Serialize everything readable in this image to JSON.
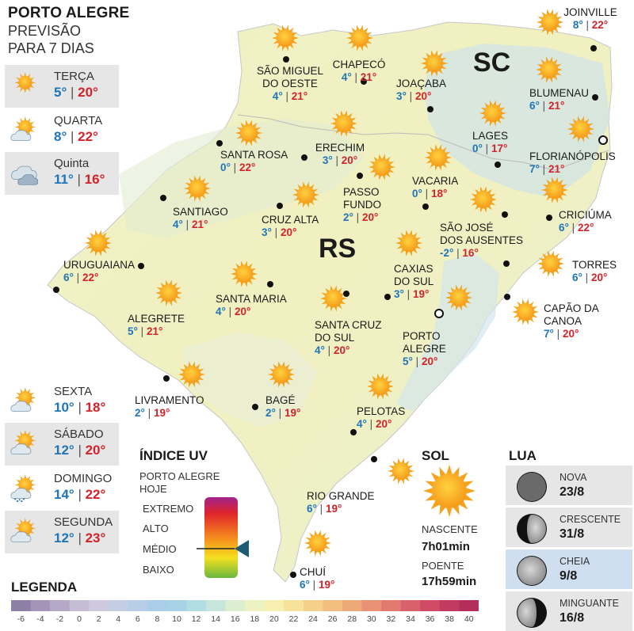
{
  "header": {
    "line1": "PORTO ALEGRE",
    "line2": "PREVISÃO",
    "line3": "PARA 7 DIAS"
  },
  "forecast": [
    {
      "day": "TERÇA",
      "min": "5°",
      "max": "20°",
      "icon": "sun-icon"
    },
    {
      "day": "QUARTA",
      "min": "8°",
      "max": "22°",
      "icon": "sun-cloud-icon"
    },
    {
      "day": "Quinta",
      "min": "11°",
      "max": "16°",
      "icon": "cloud-icon"
    },
    {
      "day": "SEXTA",
      "min": "10°",
      "max": "18°",
      "icon": "sun-cloud-icon"
    },
    {
      "day": "SÁBADO",
      "min": "12°",
      "max": "20°",
      "icon": "sun-cloud-icon"
    },
    {
      "day": "DOMINGO",
      "min": "14°",
      "max": "22°",
      "icon": "sun-cloud-rain-icon"
    },
    {
      "day": "SEGUNDA",
      "min": "12°",
      "max": "23°",
      "icon": "sun-cloud-icon"
    }
  ],
  "states": {
    "sc": "SC",
    "rs": "RS"
  },
  "cities": [
    {
      "name": "SÃO MIGUEL\nDO OESTE",
      "min": "4°",
      "max": "21°"
    },
    {
      "name": "CHAPECÓ",
      "min": "4°",
      "max": "21°"
    },
    {
      "name": "JOAÇABA",
      "min": "3°",
      "max": "20°"
    },
    {
      "name": "JOINVILLE",
      "min": "8°",
      "max": "22°"
    },
    {
      "name": "BLUMENAU",
      "min": "6°",
      "max": "21°"
    },
    {
      "name": "LAGES",
      "min": "0°",
      "max": "17°"
    },
    {
      "name": "FLORIANÓPOLIS",
      "min": "7°",
      "max": "21°"
    },
    {
      "name": "SANTA ROSA",
      "min": "0°",
      "max": "22°"
    },
    {
      "name": "ERECHIM",
      "min": "3°",
      "max": "20°"
    },
    {
      "name": "VACARIA",
      "min": "0°",
      "max": "18°"
    },
    {
      "name": "PASSO\nFUNDO",
      "min": "2°",
      "max": "20°"
    },
    {
      "name": "SANTIAGO",
      "min": "4°",
      "max": "21°"
    },
    {
      "name": "CRUZ ALTA",
      "min": "3°",
      "max": "20°"
    },
    {
      "name": "SÃO JOSÉ\nDOS AUSENTES",
      "min": "-2°",
      "max": "16°"
    },
    {
      "name": "CRICIÚMA",
      "min": "6°",
      "max": "22°"
    },
    {
      "name": "URUGUAIANA",
      "min": "6°",
      "max": "22°"
    },
    {
      "name": "TORRES",
      "min": "6°",
      "max": "20°"
    },
    {
      "name": "CAXIAS\nDO SUL",
      "min": "3°",
      "max": "19°"
    },
    {
      "name": "SANTA MARIA",
      "min": "4°",
      "max": "20°"
    },
    {
      "name": "ALEGRETE",
      "min": "5°",
      "max": "21°"
    },
    {
      "name": "CAPÃO DA\nCANOA",
      "min": "7°",
      "max": "20°"
    },
    {
      "name": "SANTA CRUZ\nDO SUL",
      "min": "4°",
      "max": "20°"
    },
    {
      "name": "PORTO\nALEGRE",
      "min": "5°",
      "max": "20°"
    },
    {
      "name": "LIVRAMENTO",
      "min": "2°",
      "max": "19°"
    },
    {
      "name": "BAGÉ",
      "min": "2°",
      "max": "19°"
    },
    {
      "name": "PELOTAS",
      "min": "4°",
      "max": "20°"
    },
    {
      "name": "RIO GRANDE",
      "min": "6°",
      "max": "19°"
    },
    {
      "name": "CHUÍ",
      "min": "6°",
      "max": "19°"
    }
  ],
  "uv": {
    "title": "ÍNDICE UV",
    "subtitle1": "PORTO ALEGRE",
    "subtitle2": "HOJE",
    "levels": [
      "EXTREMO",
      "ALTO",
      "MÉDIO",
      "BAIXO"
    ],
    "current_level": "MÉDIO"
  },
  "sun": {
    "title": "SOL",
    "rise_label": "NASCENTE",
    "rise": "7h01min",
    "set_label": "POENTE",
    "set": "17h59min"
  },
  "moon": {
    "title": "LUA",
    "phases": [
      {
        "name": "NOVA",
        "date": "23/8",
        "icon": "new-moon-icon"
      },
      {
        "name": "CRESCENTE",
        "date": "31/8",
        "icon": "first-quarter-moon-icon"
      },
      {
        "name": "CHEIA",
        "date": "9/8",
        "icon": "full-moon-icon",
        "highlight": true
      },
      {
        "name": "MINGUANTE",
        "date": "16/8",
        "icon": "last-quarter-moon-icon"
      }
    ]
  },
  "legend": {
    "title": "LEGENDA",
    "values": [
      "-6",
      "-4",
      "-2",
      "0",
      "2",
      "4",
      "6",
      "8",
      "10",
      "12",
      "14",
      "16",
      "18",
      "20",
      "22",
      "24",
      "26",
      "28",
      "30",
      "32",
      "34",
      "36",
      "38",
      "40"
    ],
    "colors": [
      "#8e7fa6",
      "#a495b8",
      "#b6a9c8",
      "#c5bcd6",
      "#cfc9df",
      "#c3cde4",
      "#b7cde8",
      "#aacde9",
      "#a6d3e6",
      "#b2dde3",
      "#c6e6dc",
      "#dbeed0",
      "#ecf2c2",
      "#f6efaf",
      "#f7e29b",
      "#f5d08b",
      "#f2be80",
      "#eea978",
      "#e99273",
      "#e27a6f",
      "#d9616b",
      "#cf4b66",
      "#c23a60",
      "#b32e5a"
    ]
  }
}
